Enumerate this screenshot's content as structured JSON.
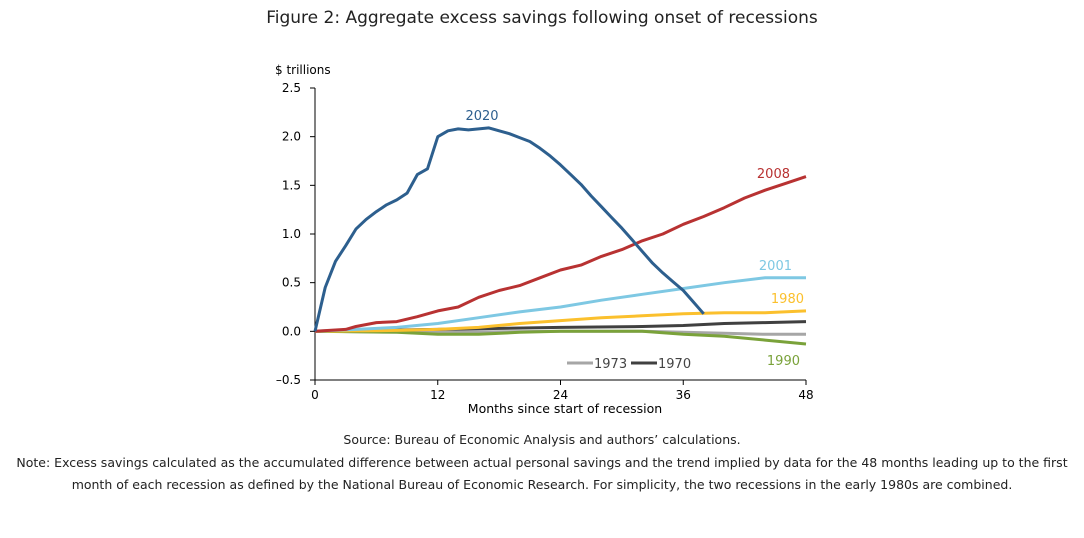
{
  "chart_data": {
    "type": "line",
    "title": "Figure 2: Aggregate excess savings following onset of recessions",
    "ylabel": "$ trillions",
    "xlabel": "Months since start of recession",
    "xlim": [
      0,
      48
    ],
    "ylim": [
      -0.5,
      2.5
    ],
    "xticks": [
      0,
      12,
      24,
      36,
      48
    ],
    "yticks": [
      -0.5,
      0.0,
      0.5,
      1.0,
      1.5,
      2.0,
      2.5
    ],
    "ytick_labels": [
      "–0.5",
      "0.0",
      "0.5",
      "1.0",
      "1.5",
      "2.0",
      "2.5"
    ],
    "grid": false,
    "series": [
      {
        "name": "1973",
        "color": "#a6a6a6",
        "legend": true,
        "points": [
          [
            0,
            0
          ],
          [
            12,
            -0.01
          ],
          [
            24,
            0
          ],
          [
            32,
            0
          ],
          [
            36,
            -0.01
          ],
          [
            40,
            -0.02
          ],
          [
            44,
            -0.03
          ],
          [
            48,
            -0.03
          ]
        ]
      },
      {
        "name": "1990",
        "color": "#7aa23a",
        "points": [
          [
            0,
            0
          ],
          [
            8,
            -0.01
          ],
          [
            12,
            -0.03
          ],
          [
            16,
            -0.03
          ],
          [
            20,
            -0.01
          ],
          [
            24,
            0
          ],
          [
            32,
            0
          ],
          [
            36,
            -0.03
          ],
          [
            40,
            -0.05
          ],
          [
            44,
            -0.09
          ],
          [
            48,
            -0.13
          ]
        ]
      },
      {
        "name": "1970",
        "color": "#404040",
        "legend": true,
        "points": [
          [
            0,
            0
          ],
          [
            12,
            0.02
          ],
          [
            24,
            0.04
          ],
          [
            32,
            0.05
          ],
          [
            36,
            0.06
          ],
          [
            40,
            0.08
          ],
          [
            44,
            0.09
          ],
          [
            48,
            0.1
          ]
        ]
      },
      {
        "name": "1980",
        "color": "#fbc02d",
        "points": [
          [
            0,
            0
          ],
          [
            8,
            0.01
          ],
          [
            12,
            0.02
          ],
          [
            16,
            0.04
          ],
          [
            20,
            0.08
          ],
          [
            24,
            0.11
          ],
          [
            28,
            0.14
          ],
          [
            32,
            0.16
          ],
          [
            36,
            0.18
          ],
          [
            40,
            0.19
          ],
          [
            44,
            0.19
          ],
          [
            48,
            0.21
          ]
        ]
      },
      {
        "name": "2001",
        "color": "#7ec8e3",
        "points": [
          [
            0,
            0
          ],
          [
            4,
            0.02
          ],
          [
            8,
            0.04
          ],
          [
            12,
            0.08
          ],
          [
            16,
            0.14
          ],
          [
            20,
            0.2
          ],
          [
            24,
            0.25
          ],
          [
            28,
            0.32
          ],
          [
            32,
            0.38
          ],
          [
            36,
            0.44
          ],
          [
            40,
            0.5
          ],
          [
            44,
            0.55
          ],
          [
            46,
            0.55
          ],
          [
            48,
            0.55
          ]
        ]
      },
      {
        "name": "2008",
        "color": "#b83232",
        "points": [
          [
            0,
            0
          ],
          [
            3,
            0.02
          ],
          [
            4,
            0.05
          ],
          [
            6,
            0.09
          ],
          [
            8,
            0.1
          ],
          [
            10,
            0.15
          ],
          [
            12,
            0.21
          ],
          [
            14,
            0.25
          ],
          [
            16,
            0.35
          ],
          [
            18,
            0.42
          ],
          [
            20,
            0.47
          ],
          [
            22,
            0.55
          ],
          [
            24,
            0.63
          ],
          [
            26,
            0.68
          ],
          [
            28,
            0.77
          ],
          [
            30,
            0.84
          ],
          [
            32,
            0.93
          ],
          [
            34,
            1.0
          ],
          [
            36,
            1.1
          ],
          [
            38,
            1.18
          ],
          [
            40,
            1.27
          ],
          [
            42,
            1.37
          ],
          [
            44,
            1.45
          ],
          [
            46,
            1.52
          ],
          [
            48,
            1.59
          ]
        ]
      },
      {
        "name": "2020",
        "color": "#2d5f8e",
        "points": [
          [
            0,
            0
          ],
          [
            1,
            0.45
          ],
          [
            2,
            0.72
          ],
          [
            3,
            0.88
          ],
          [
            4,
            1.05
          ],
          [
            5,
            1.15
          ],
          [
            6,
            1.23
          ],
          [
            7,
            1.3
          ],
          [
            8,
            1.35
          ],
          [
            9,
            1.42
          ],
          [
            10,
            1.61
          ],
          [
            11,
            1.67
          ],
          [
            12,
            2.0
          ],
          [
            13,
            2.06
          ],
          [
            14,
            2.08
          ],
          [
            15,
            2.07
          ],
          [
            16,
            2.08
          ],
          [
            17,
            2.09
          ],
          [
            18,
            2.06
          ],
          [
            19,
            2.03
          ],
          [
            20,
            1.99
          ],
          [
            21,
            1.95
          ],
          [
            22,
            1.88
          ],
          [
            23,
            1.8
          ],
          [
            24,
            1.71
          ],
          [
            25,
            1.61
          ],
          [
            26,
            1.51
          ],
          [
            27,
            1.39
          ],
          [
            28,
            1.28
          ],
          [
            29,
            1.17
          ],
          [
            30,
            1.06
          ],
          [
            31,
            0.94
          ],
          [
            32,
            0.82
          ],
          [
            33,
            0.7
          ],
          [
            34,
            0.6
          ],
          [
            35,
            0.51
          ],
          [
            36,
            0.42
          ],
          [
            37,
            0.3
          ],
          [
            38,
            0.18
          ]
        ]
      }
    ]
  },
  "source": "Source: Bureau of Economic Analysis and authors’ calculations.",
  "note": "Note: Excess savings calculated as the accumulated difference between actual personal savings and the trend implied by data for the 48 months leading up to the first month of each recession as defined by the National Bureau of Economic Research. For simplicity, the two recessions in the early 1980s are combined."
}
